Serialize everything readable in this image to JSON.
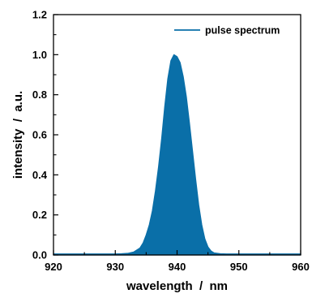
{
  "chart_data": {
    "type": "area",
    "xlabel": "wavelength  /  nm",
    "ylabel": "intensity  /  a.u.",
    "xlim": [
      920,
      960
    ],
    "ylim": [
      0.0,
      1.2
    ],
    "x_ticks": [
      920,
      930,
      940,
      950,
      960
    ],
    "x_tick_labels": [
      "920",
      "930",
      "940",
      "950",
      "960"
    ],
    "y_ticks": [
      0.0,
      0.2,
      0.4,
      0.6,
      0.8,
      1.0,
      1.2
    ],
    "y_tick_labels": [
      "0.0",
      "0.2",
      "0.4",
      "0.6",
      "0.8",
      "1.0",
      "1.2"
    ],
    "legend_position": "top-right",
    "grid": false,
    "series": [
      {
        "name": "pulse spectrum",
        "color": "#0a6fa8",
        "x": [
          920,
          925,
          928,
          930,
          931,
          932,
          933,
          934,
          934.5,
          935,
          935.5,
          936,
          936.5,
          937,
          937.5,
          938,
          938.5,
          939,
          939.5,
          940,
          940.5,
          941,
          941.5,
          942,
          942.5,
          943,
          943.5,
          944,
          944.5,
          945,
          945.5,
          946,
          947,
          948,
          950,
          955,
          960
        ],
        "y": [
          0.005,
          0.005,
          0.005,
          0.005,
          0.006,
          0.008,
          0.015,
          0.035,
          0.06,
          0.1,
          0.15,
          0.22,
          0.32,
          0.44,
          0.58,
          0.74,
          0.88,
          0.97,
          1.0,
          0.99,
          0.96,
          0.89,
          0.79,
          0.66,
          0.52,
          0.38,
          0.25,
          0.15,
          0.08,
          0.04,
          0.02,
          0.01,
          0.006,
          0.005,
          0.005,
          0.005,
          0.005
        ]
      }
    ]
  }
}
